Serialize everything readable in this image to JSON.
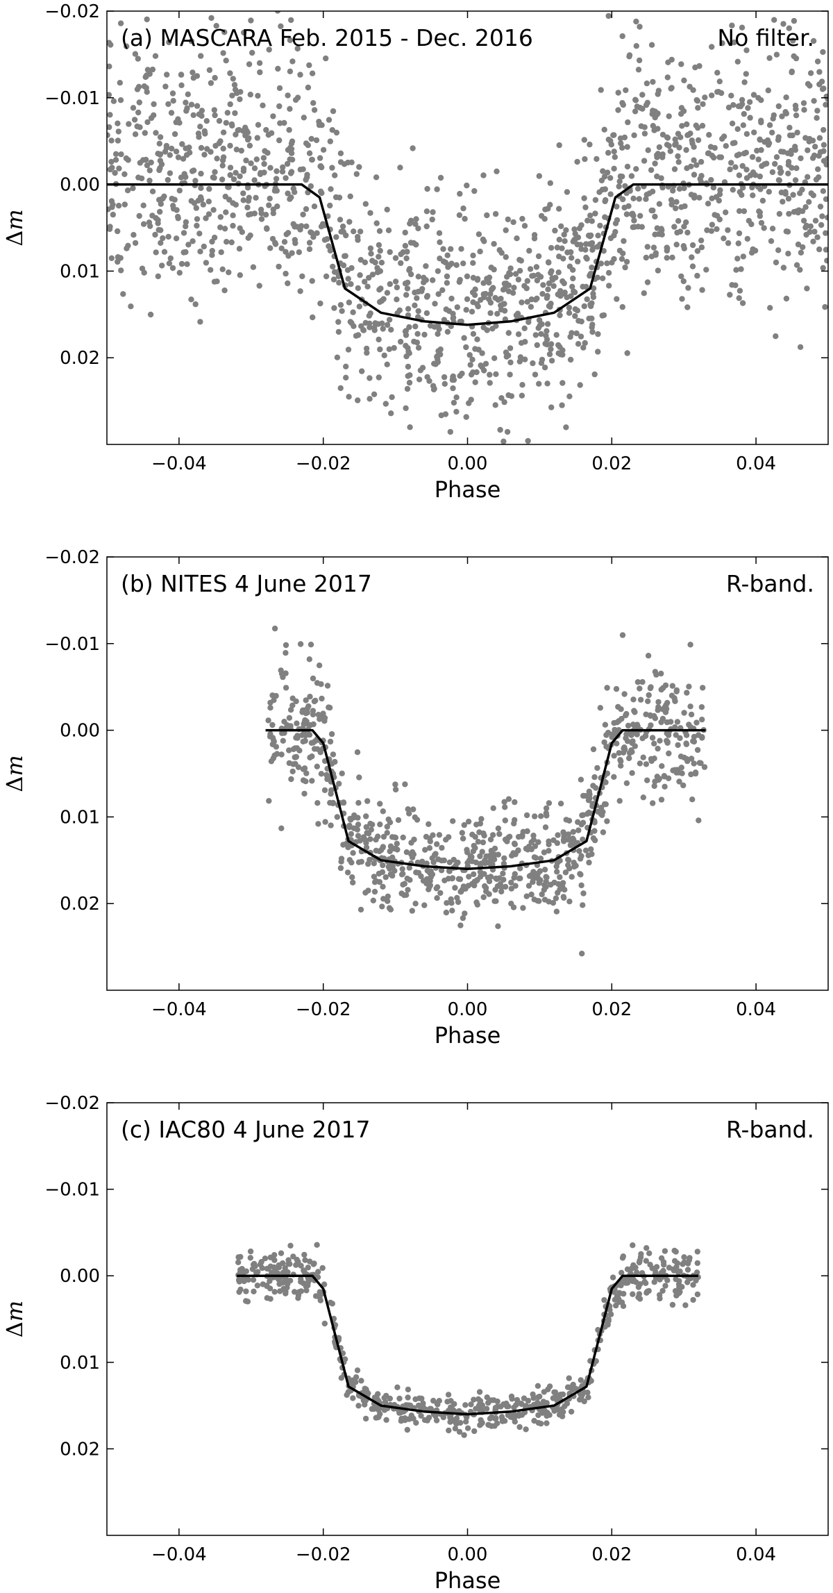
{
  "chart_data": [
    {
      "type": "scatter",
      "title": "",
      "annotation_left": "(a) MASCARA Feb. 2015 - Dec. 2016",
      "annotation_right": "No filter.",
      "xlabel": "Phase",
      "ylabel": "Δm",
      "xlim": [
        -0.05,
        0.05
      ],
      "ylim": [
        0.03,
        -0.02
      ],
      "y_inverted": true,
      "xticks": [
        -0.04,
        -0.02,
        0.0,
        0.02,
        0.04
      ],
      "xtick_labels": [
        "−0.04",
        "−0.02",
        "0.00",
        "0.02",
        "0.04"
      ],
      "yticks": [
        -0.02,
        -0.01,
        0.0,
        0.01,
        0.02
      ],
      "ytick_labels": [
        "−0.02",
        "−0.01",
        "0.00",
        "0.01",
        "0.02"
      ],
      "grid": false,
      "marker_color": "#808080",
      "line_color": "#000000",
      "series": [
        {
          "kind": "points",
          "description_key": "photometry",
          "phase_range": [
            -0.05,
            0.05
          ],
          "approx_count": 1700,
          "out_of_transit_scatter": 0.0075,
          "in_transit_scatter": 0.0065
        },
        {
          "kind": "model",
          "x": [
            -0.05,
            -0.023,
            -0.0205,
            -0.017,
            -0.012,
            -0.006,
            0.0,
            0.006,
            0.012,
            0.017,
            0.0205,
            0.023,
            0.05
          ],
          "y": [
            0.0,
            0.0,
            0.0015,
            0.012,
            0.0148,
            0.0158,
            0.0162,
            0.0158,
            0.0148,
            0.012,
            0.0015,
            0.0,
            0.0
          ]
        }
      ]
    },
    {
      "type": "scatter",
      "title": "",
      "annotation_left": "(b) NITES 4 June 2017",
      "annotation_right": "R-band.",
      "xlabel": "Phase",
      "ylabel": "Δm",
      "xlim": [
        -0.05,
        0.05
      ],
      "ylim": [
        0.03,
        -0.02
      ],
      "y_inverted": true,
      "xticks": [
        -0.04,
        -0.02,
        0.0,
        0.02,
        0.04
      ],
      "xtick_labels": [
        "−0.04",
        "−0.02",
        "0.00",
        "0.02",
        "0.04"
      ],
      "yticks": [
        -0.02,
        -0.01,
        0.0,
        0.01,
        0.02
      ],
      "ytick_labels": [
        "−0.02",
        "−0.01",
        "0.00",
        "0.01",
        "0.02"
      ],
      "grid": false,
      "marker_color": "#808080",
      "line_color": "#000000",
      "series": [
        {
          "kind": "points",
          "description_key": "photometry",
          "phase_range": [
            -0.028,
            0.033
          ],
          "approx_count": 900,
          "out_of_transit_scatter": 0.004,
          "in_transit_scatter": 0.0032
        },
        {
          "kind": "model",
          "x": [
            -0.028,
            -0.0215,
            -0.02,
            -0.0165,
            -0.012,
            -0.006,
            0.0,
            0.006,
            0.012,
            0.0165,
            0.02,
            0.0215,
            0.033
          ],
          "y": [
            0.0,
            0.0,
            0.0015,
            0.0128,
            0.015,
            0.0157,
            0.016,
            0.0157,
            0.015,
            0.0128,
            0.0015,
            0.0,
            0.0
          ]
        }
      ]
    },
    {
      "type": "scatter",
      "title": "",
      "annotation_left": "(c) IAC80 4 June 2017",
      "annotation_right": "R-band.",
      "xlabel": "Phase",
      "ylabel": "Δm",
      "xlim": [
        -0.05,
        0.05
      ],
      "ylim": [
        0.03,
        -0.02
      ],
      "y_inverted": true,
      "xticks": [
        -0.04,
        -0.02,
        0.0,
        0.02,
        0.04
      ],
      "xtick_labels": [
        "−0.04",
        "−0.02",
        "0.00",
        "0.02",
        "0.04"
      ],
      "yticks": [
        -0.02,
        -0.01,
        0.0,
        0.01,
        0.02
      ],
      "ytick_labels": [
        "−0.02",
        "−0.01",
        "0.00",
        "0.01",
        "0.02"
      ],
      "grid": false,
      "marker_color": "#808080",
      "line_color": "#000000",
      "series": [
        {
          "kind": "points",
          "description_key": "photometry",
          "phase_range": [
            -0.032,
            0.032
          ],
          "approx_count": 650,
          "out_of_transit_scatter": 0.0015,
          "in_transit_scatter": 0.0011
        },
        {
          "kind": "model",
          "x": [
            -0.032,
            -0.0215,
            -0.02,
            -0.0165,
            -0.012,
            -0.006,
            0.0,
            0.006,
            0.012,
            0.0165,
            0.02,
            0.0215,
            0.032
          ],
          "y": [
            0.0,
            0.0,
            0.0015,
            0.0128,
            0.015,
            0.0157,
            0.016,
            0.0157,
            0.015,
            0.0128,
            0.0015,
            0.0,
            0.0
          ]
        }
      ]
    }
  ]
}
